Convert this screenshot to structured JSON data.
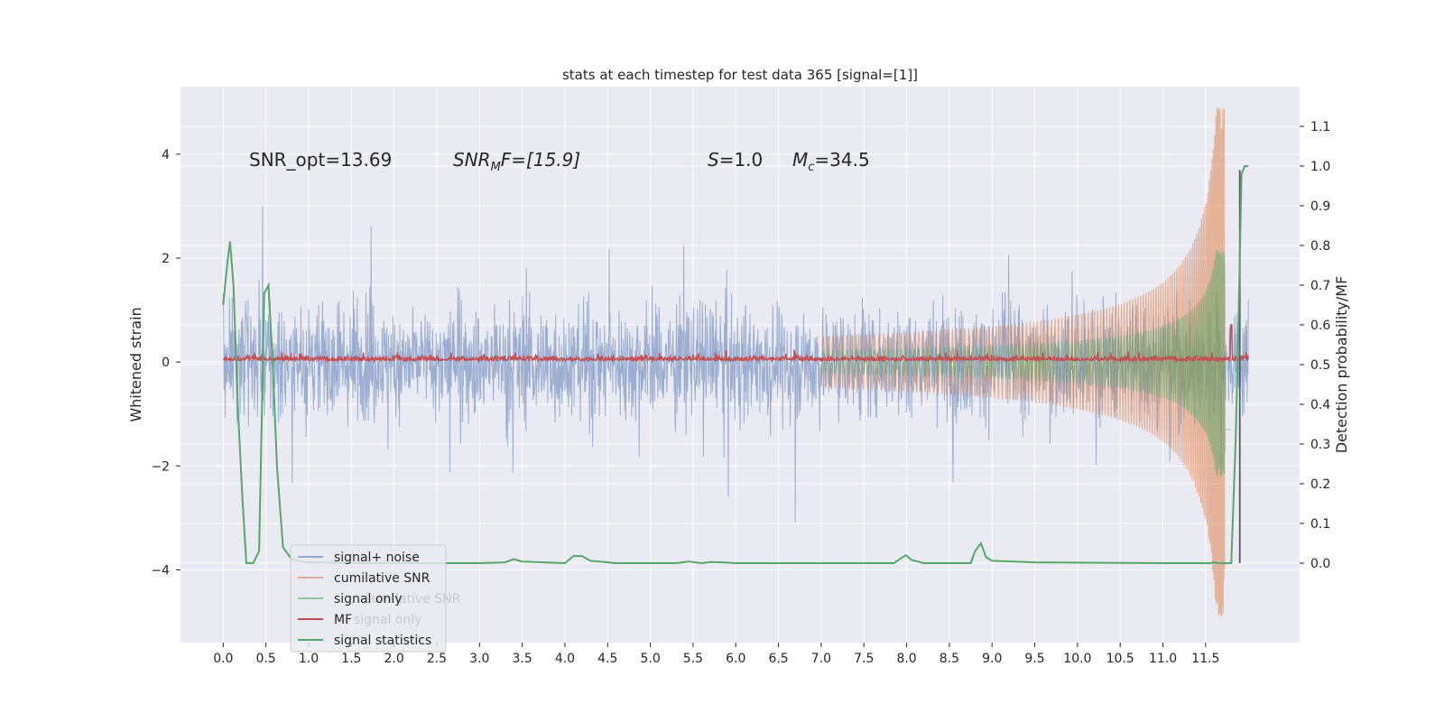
{
  "chart_data": {
    "type": "line",
    "title": "stats at each timestep for test data 365 [signal=[1]]",
    "xlabel": "",
    "ylabel_left": "Whitened strain",
    "ylabel_right": "Detection probability/MF",
    "xlim": [
      -0.5,
      12.6
    ],
    "ylim_left": [
      -5.4,
      5.3
    ],
    "ylim_right": [
      -0.2,
      1.2
    ],
    "grid": true,
    "x_ticks": [
      "0.0",
      "0.5",
      "1.0",
      "1.5",
      "2.0",
      "2.5",
      "3.0",
      "3.5",
      "4.0",
      "4.5",
      "5.0",
      "5.5",
      "6.0",
      "6.5",
      "7.0",
      "7.5",
      "8.0",
      "8.5",
      "9.0",
      "9.5",
      "10.0",
      "10.5",
      "11.0",
      "11.5"
    ],
    "y_ticks_left": [
      "4",
      "2",
      "0",
      "−2",
      "−4"
    ],
    "y_ticks_right": [
      "0.0",
      "0.1",
      "0.2",
      "0.3",
      "0.4",
      "0.5",
      "0.6",
      "0.7",
      "0.8",
      "0.9",
      "1.0",
      "1.1"
    ],
    "annotations": {
      "snr_opt": "SNR_opt=13.69",
      "snr_mf_base": "SNR",
      "snr_mf_sub": "M",
      "snr_mf_rest": "F=[15.9]",
      "s_var": "S",
      "s_val": "=1.0",
      "mc_var": "M",
      "mc_sub": "c",
      "mc_val": "=34.5"
    },
    "legend": {
      "position": "lower-left",
      "entries": [
        {
          "label": "signal+ noise",
          "color": "#4c72b0"
        },
        {
          "label": "cumilative SNR",
          "color": "#dd8452"
        },
        {
          "label": "signal only",
          "color": "#55a868"
        },
        {
          "label": "MF",
          "color": "#c44e52"
        },
        {
          "label": "signal statistics",
          "color": "#55a868"
        }
      ],
      "ghost_labels": [
        "cumilative SNR",
        "signal only"
      ]
    },
    "series": [
      {
        "name": "signal+ noise",
        "axis": "left",
        "color": "#4c72b0",
        "style": "noise band",
        "x_range": [
          0.0,
          12.0
        ],
        "approx_range": [
          -3.3,
          3.3
        ]
      },
      {
        "name": "cumilative SNR",
        "axis": "left",
        "color": "#dd8452",
        "style": "chirp",
        "x_range": [
          7.0,
          11.72
        ],
        "peak_amplitude": 4.9
      },
      {
        "name": "signal only",
        "axis": "left",
        "color": "#55a868",
        "style": "chirp",
        "x_range": [
          7.0,
          11.8
        ],
        "peak_amplitude": 2.2
      },
      {
        "name": "MF",
        "axis": "right",
        "color": "#c44e52",
        "style": "noisy baseline",
        "baseline": 0.51
      },
      {
        "name": "signal statistics",
        "axis": "right",
        "color": "#55a868",
        "points": [
          [
            0.0,
            0.65
          ],
          [
            0.05,
            0.76
          ],
          [
            0.08,
            0.81
          ],
          [
            0.12,
            0.7
          ],
          [
            0.17,
            0.4
          ],
          [
            0.22,
            0.18
          ],
          [
            0.27,
            0.0
          ],
          [
            0.35,
            0.0
          ],
          [
            0.42,
            0.03
          ],
          [
            0.48,
            0.68
          ],
          [
            0.53,
            0.7
          ],
          [
            0.58,
            0.5
          ],
          [
            0.63,
            0.24
          ],
          [
            0.7,
            0.04
          ],
          [
            0.8,
            0.01
          ],
          [
            0.95,
            0.003
          ],
          [
            1.5,
            0.0
          ],
          [
            2.0,
            0.0
          ],
          [
            3.0,
            0.0
          ],
          [
            3.3,
            0.002
          ],
          [
            3.4,
            0.01
          ],
          [
            3.5,
            0.004
          ],
          [
            4.0,
            0.0
          ],
          [
            4.1,
            0.018
          ],
          [
            4.2,
            0.018
          ],
          [
            4.3,
            0.006
          ],
          [
            4.6,
            0.0
          ],
          [
            5.3,
            0.0
          ],
          [
            5.45,
            0.004
          ],
          [
            5.6,
            0.0
          ],
          [
            5.7,
            0.003
          ],
          [
            5.85,
            0.002
          ],
          [
            6.0,
            0.0
          ],
          [
            7.0,
            0.0
          ],
          [
            7.85,
            0.0
          ],
          [
            7.92,
            0.01
          ],
          [
            7.99,
            0.02
          ],
          [
            8.06,
            0.008
          ],
          [
            8.2,
            0.0
          ],
          [
            8.75,
            0.0
          ],
          [
            8.8,
            0.03
          ],
          [
            8.87,
            0.05
          ],
          [
            8.93,
            0.015
          ],
          [
            9.0,
            0.006
          ],
          [
            9.5,
            0.002
          ],
          [
            11.0,
            0.0
          ],
          [
            11.55,
            0.0
          ],
          [
            11.6,
            0.002
          ],
          [
            11.65,
            0.0
          ],
          [
            11.8,
            0.0
          ],
          [
            11.85,
            0.3
          ],
          [
            11.88,
            0.55
          ],
          [
            11.92,
            0.98
          ],
          [
            11.96,
            1.0
          ],
          [
            12.0,
            1.0
          ]
        ]
      },
      {
        "name": "",
        "axis": "right",
        "color": "#595959",
        "style": "vertical marker",
        "x": 11.9,
        "range": [
          0.0,
          0.99
        ]
      }
    ]
  }
}
